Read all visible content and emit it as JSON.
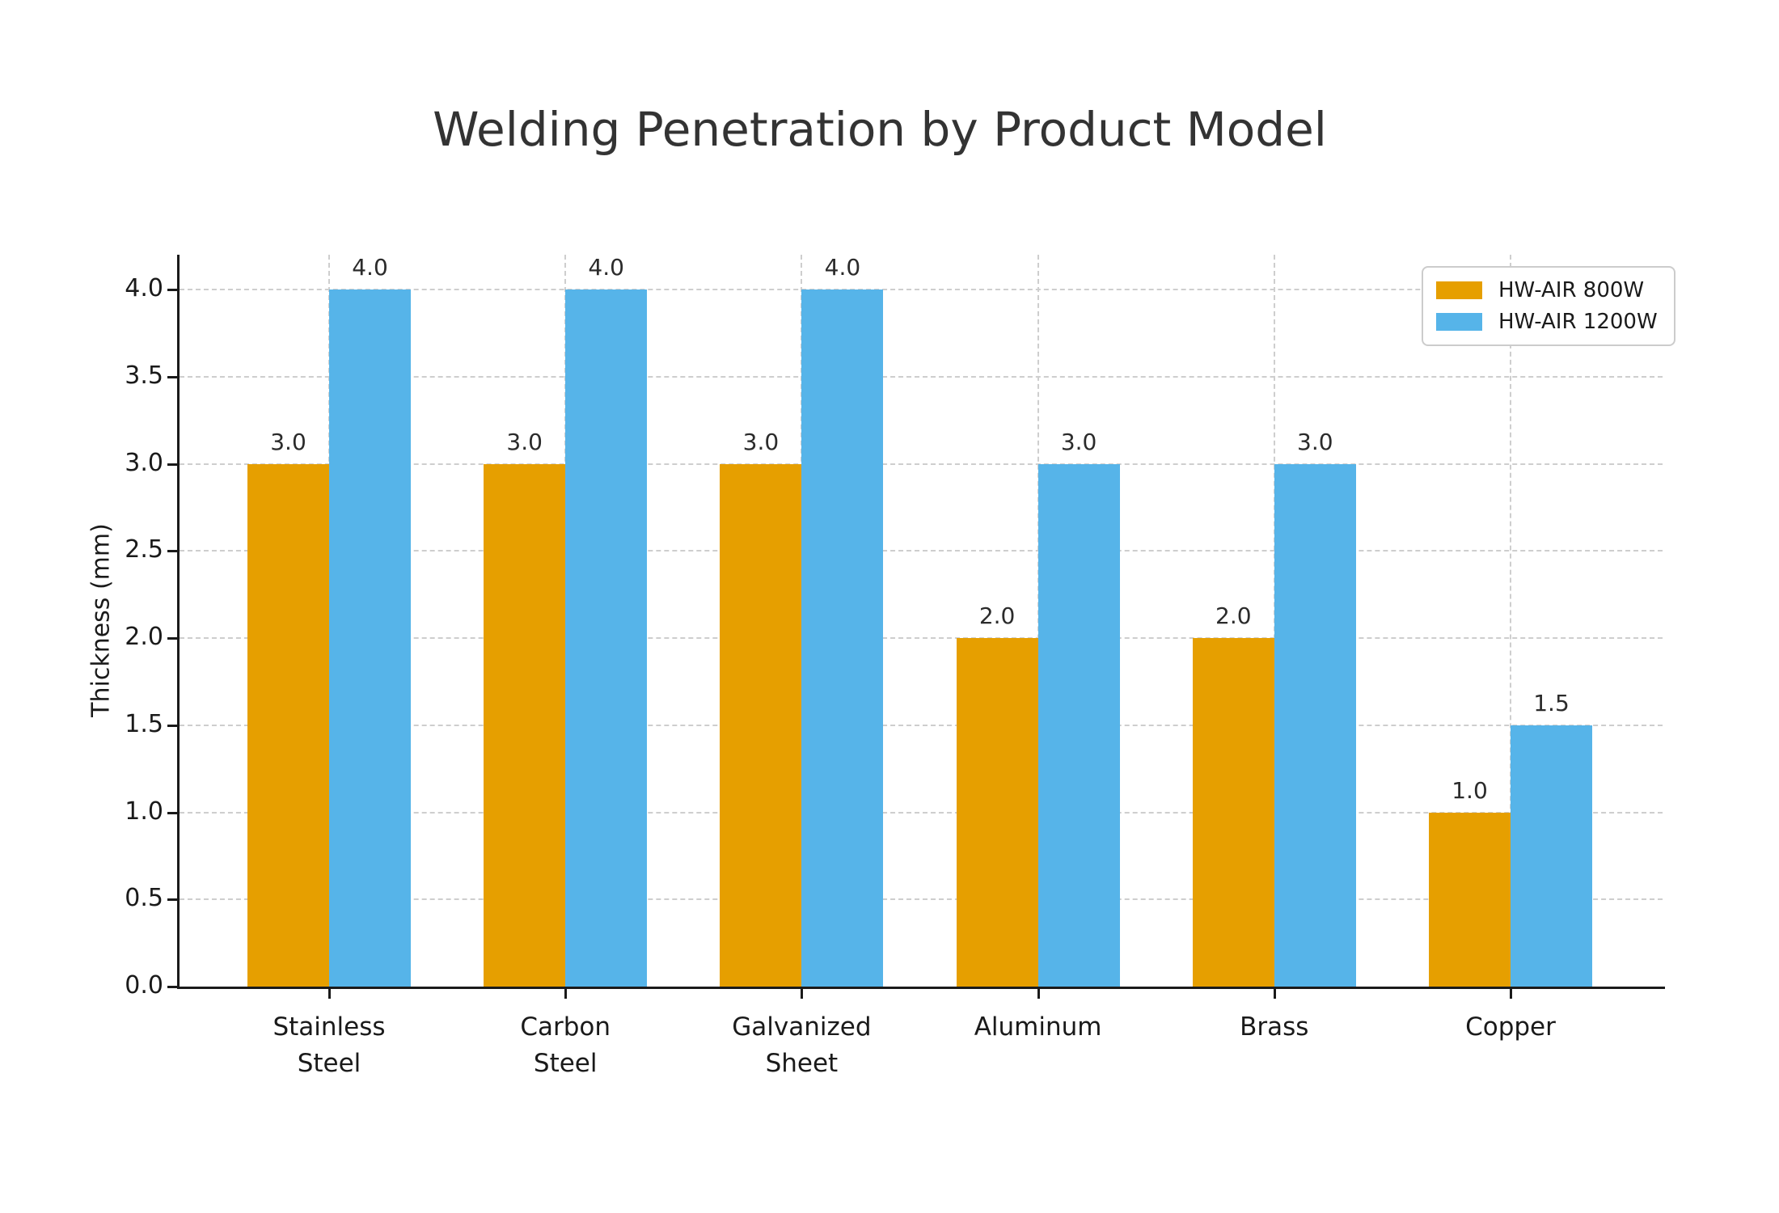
{
  "chart_data": {
    "type": "bar",
    "title": "Welding Penetration by Product Model",
    "ylabel": "Thickness (mm)",
    "xlabel": "",
    "categories": [
      "Stainless Steel",
      "Carbon Steel",
      "Galvanized Sheet",
      "Aluminum",
      "Brass",
      "Copper"
    ],
    "series": [
      {
        "name": "HW-AIR 800W",
        "color": "#E69F00",
        "values": [
          3.0,
          3.0,
          3.0,
          2.0,
          2.0,
          1.0
        ]
      },
      {
        "name": "HW-AIR 1200W",
        "color": "#56B4E9",
        "values": [
          4.0,
          4.0,
          4.0,
          3.0,
          3.0,
          1.5
        ]
      }
    ],
    "yticks": [
      0.0,
      0.5,
      1.0,
      1.5,
      2.0,
      2.5,
      3.0,
      3.5,
      4.0
    ],
    "ylim": [
      0,
      4.2
    ],
    "grid": true,
    "value_labels": true,
    "value_label_format": "one-decimal",
    "legend_position": "upper-right",
    "colors": {
      "text": "#1a1a1a",
      "title": "#333333",
      "gridline": "#cecece",
      "axis": "#1a1a1a",
      "background": "#ffffff"
    }
  }
}
